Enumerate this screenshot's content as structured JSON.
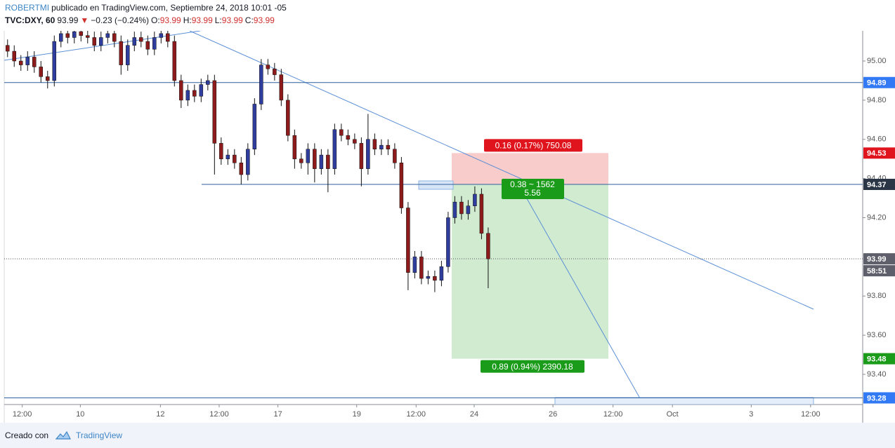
{
  "header": {
    "author": "ROBERTMI",
    "published": "publicado en TradingView.com, Septiembre 24, 2018 10:01 -05",
    "symbol": "TVC:DXY, 60",
    "last": "93.99",
    "direction": "▼",
    "change": "−0.23 (−0.24%)",
    "ohlc": [
      {
        "label": "O:",
        "value": "93.99"
      },
      {
        "label": "H:",
        "value": "93.99"
      },
      {
        "label": "L:",
        "value": "93.99"
      },
      {
        "label": "C:",
        "value": "93.99"
      }
    ]
  },
  "chart_data": {
    "type": "candlestick",
    "up_color": "#2f3e9e",
    "down_color": "#8e1b1b",
    "open": [
      95.08,
      95.05,
      95.0,
      94.98,
      95.02,
      94.97,
      94.92,
      94.9,
      95.1,
      95.14,
      95.12,
      95.15,
      95.13,
      95.12,
      95.08,
      95.12,
      95.14,
      95.1,
      94.98,
      95.08,
      95.12,
      95.1,
      95.06,
      95.12,
      95.14,
      95.1,
      94.9,
      94.8,
      94.85,
      94.82,
      94.88,
      94.9,
      94.58,
      94.5,
      94.52,
      94.48,
      94.42,
      94.55,
      94.78,
      94.98,
      94.96,
      94.93,
      94.8,
      94.62,
      94.5,
      94.48,
      94.55,
      94.45,
      94.52,
      94.45,
      94.65,
      94.62,
      94.6,
      94.58,
      94.45,
      94.6,
      94.55,
      94.57,
      94.55,
      94.48,
      94.25,
      93.92,
      94.0,
      93.89,
      93.9,
      93.88,
      93.95,
      94.2,
      94.28,
      94.22,
      94.26,
      94.32,
      94.12
    ],
    "high": [
      95.11,
      95.08,
      95.03,
      95.05,
      95.05,
      95.0,
      94.95,
      95.13,
      95.17,
      95.17,
      95.18,
      95.18,
      95.16,
      95.15,
      95.15,
      95.17,
      95.17,
      95.13,
      95.11,
      95.15,
      95.15,
      95.13,
      95.15,
      95.17,
      95.17,
      95.13,
      94.93,
      94.88,
      94.88,
      94.91,
      94.93,
      94.93,
      94.61,
      94.55,
      94.55,
      94.51,
      94.58,
      94.81,
      95.01,
      95.01,
      94.99,
      94.96,
      94.83,
      94.65,
      94.53,
      94.58,
      94.58,
      94.55,
      94.55,
      94.68,
      94.68,
      94.65,
      94.63,
      94.61,
      94.73,
      94.63,
      94.6,
      94.6,
      94.58,
      94.51,
      94.28,
      94.03,
      94.03,
      93.93,
      93.93,
      93.98,
      94.23,
      94.31,
      94.31,
      94.29,
      94.36,
      94.35,
      94.15
    ],
    "low": [
      95.02,
      94.97,
      94.95,
      94.95,
      94.94,
      94.89,
      94.86,
      94.87,
      95.07,
      95.09,
      95.09,
      95.1,
      95.09,
      95.05,
      95.05,
      95.09,
      95.07,
      94.93,
      94.95,
      95.05,
      95.07,
      95.03,
      95.03,
      95.09,
      95.07,
      94.87,
      94.76,
      94.77,
      94.79,
      94.79,
      94.85,
      94.42,
      94.47,
      94.47,
      94.45,
      94.37,
      94.39,
      94.52,
      94.75,
      94.93,
      94.9,
      94.77,
      94.59,
      94.45,
      94.45,
      94.42,
      94.38,
      94.42,
      94.33,
      94.42,
      94.59,
      94.57,
      94.55,
      94.36,
      94.42,
      94.52,
      94.52,
      94.52,
      94.45,
      94.22,
      93.83,
      93.89,
      93.86,
      93.86,
      93.82,
      93.85,
      93.92,
      94.17,
      94.19,
      94.19,
      94.23,
      94.09,
      93.84
    ],
    "close": [
      95.05,
      95.0,
      94.98,
      95.02,
      94.97,
      94.92,
      94.9,
      95.1,
      95.14,
      95.12,
      95.15,
      95.13,
      95.12,
      95.08,
      95.12,
      95.14,
      95.1,
      94.98,
      95.08,
      95.12,
      95.1,
      95.06,
      95.12,
      95.14,
      95.1,
      94.9,
      94.8,
      94.85,
      94.82,
      94.88,
      94.9,
      94.58,
      94.5,
      94.52,
      94.48,
      94.42,
      94.55,
      94.78,
      94.98,
      94.96,
      94.93,
      94.8,
      94.62,
      94.5,
      94.48,
      94.55,
      94.45,
      94.52,
      94.45,
      94.65,
      94.62,
      94.6,
      94.58,
      94.45,
      94.6,
      94.55,
      94.57,
      94.55,
      94.48,
      94.25,
      93.92,
      94.0,
      93.89,
      93.9,
      93.88,
      93.95,
      94.2,
      94.28,
      94.22,
      94.26,
      94.32,
      94.12,
      93.99
    ],
    "xlim": [
      0,
      128.6
    ],
    "xticks": [
      {
        "value": 2.7,
        "label": "12:00"
      },
      {
        "value": 11.4,
        "label": "10"
      },
      {
        "value": 23.4,
        "label": "12"
      },
      {
        "value": 32.2,
        "label": "12:00"
      },
      {
        "value": 41.0,
        "label": "17"
      },
      {
        "value": 52.8,
        "label": "19"
      },
      {
        "value": 61.7,
        "label": "12:00"
      },
      {
        "value": 70.4,
        "label": "24"
      },
      {
        "value": 82.2,
        "label": "26"
      },
      {
        "value": 91.2,
        "label": "12:00"
      },
      {
        "value": 100.1,
        "label": "Oct"
      },
      {
        "value": 111.9,
        "label": "3"
      },
      {
        "value": 120.8,
        "label": "12:00"
      }
    ],
    "ylim": [
      93.246,
      95.154
    ],
    "yticks": [
      {
        "value": 95,
        "label": "95.00"
      },
      {
        "value": 94.8,
        "label": "94.80"
      },
      {
        "value": 94.6,
        "label": "94.60"
      },
      {
        "value": 94.4,
        "label": "94.40"
      },
      {
        "value": 94.2,
        "label": "94.20"
      },
      {
        "value": 93.8,
        "label": "93.80"
      },
      {
        "value": 93.6,
        "label": "93.60"
      },
      {
        "value": 93.4,
        "label": "93.40"
      }
    ],
    "grid": false,
    "line_color": "#3a6fc4",
    "horizontal_lines": [
      94.89,
      94.37,
      93.28
    ],
    "last_price": 93.99,
    "countdown": "58:51",
    "position": {
      "entry": 94.37,
      "stop": 94.53,
      "target": 93.48,
      "stop_label": "0.16 (0.17%) 750.08",
      "info": [
        "0.38 ~ 1562",
        "5.56"
      ],
      "target_label": "0.89 (0.94%) 2390.18"
    }
  },
  "footer": {
    "created_with": "Creado con",
    "brand": "TradingView"
  }
}
